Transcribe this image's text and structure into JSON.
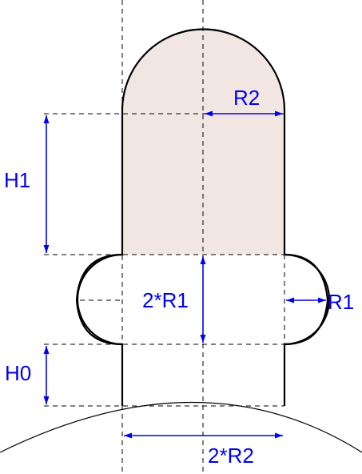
{
  "labels": {
    "r2": "R2",
    "h1": "H1",
    "two_r1": "2*R1",
    "r1": "R1",
    "h0": "H0",
    "two_r2": "2*R2"
  },
  "colors": {
    "fill": "#f2e6e3",
    "outline": "#000000",
    "dimension": "#0000ee",
    "construction": "#000000",
    "background": "#ffffff"
  }
}
